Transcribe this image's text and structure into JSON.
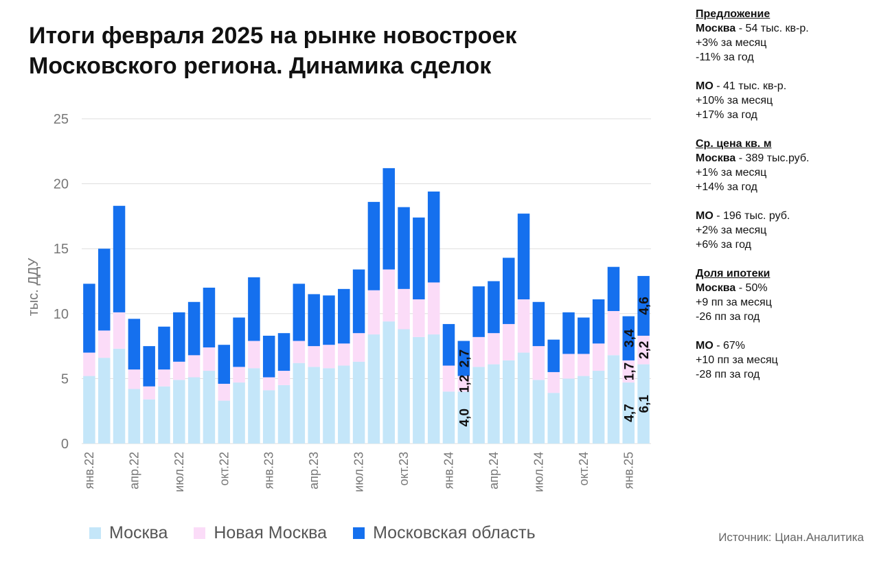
{
  "title_lines": [
    "Итоги февраля 2025 на рынке новостроек",
    "Московского региона. Динамика сделок"
  ],
  "colors": {
    "moscow": "#c4e6f9",
    "new_moscow": "#fbdcf8",
    "mo": "#1570ee",
    "grid": "#dddddd",
    "axis_text": "#777777"
  },
  "chart_data": {
    "type": "bar",
    "stacked": true,
    "ylabel": "тыс. ДДУ",
    "ylim": [
      0,
      25
    ],
    "yticks": [
      0,
      5,
      10,
      15,
      20,
      25
    ],
    "grid": true,
    "legend_position": "bottom",
    "x_tick_labels": [
      {
        "index": 0,
        "label": "янв.22"
      },
      {
        "index": 3,
        "label": "апр.22"
      },
      {
        "index": 6,
        "label": "июл.22"
      },
      {
        "index": 9,
        "label": "окт.22"
      },
      {
        "index": 12,
        "label": "янв.23"
      },
      {
        "index": 15,
        "label": "апр.23"
      },
      {
        "index": 18,
        "label": "июл.23"
      },
      {
        "index": 21,
        "label": "окт.23"
      },
      {
        "index": 24,
        "label": "янв.24"
      },
      {
        "index": 27,
        "label": "апр.24"
      },
      {
        "index": 30,
        "label": "июл.24"
      },
      {
        "index": 33,
        "label": "окт.24"
      },
      {
        "index": 36,
        "label": "янв.25"
      }
    ],
    "series": [
      {
        "name": "Москва",
        "color": "#c4e6f9",
        "values": [
          5.2,
          6.6,
          7.3,
          4.2,
          3.4,
          4.4,
          4.9,
          5.1,
          5.6,
          3.3,
          4.7,
          5.8,
          4.1,
          4.5,
          6.2,
          5.9,
          5.8,
          6.0,
          6.3,
          8.4,
          9.4,
          8.8,
          8.2,
          8.4,
          4.0,
          4.0,
          5.9,
          6.1,
          6.4,
          7.0,
          4.9,
          3.9,
          5.0,
          5.2,
          5.6,
          6.8,
          4.7,
          6.1
        ]
      },
      {
        "name": "Новая Москва",
        "color": "#fbdcf8",
        "values": [
          1.8,
          2.1,
          2.8,
          1.5,
          1.0,
          1.3,
          1.4,
          1.7,
          1.8,
          1.3,
          1.2,
          2.1,
          1.0,
          1.1,
          1.7,
          1.6,
          1.8,
          1.7,
          2.2,
          3.4,
          4.0,
          3.1,
          2.9,
          4.0,
          2.0,
          1.2,
          2.3,
          2.4,
          2.8,
          4.1,
          2.6,
          1.6,
          1.9,
          1.7,
          2.1,
          3.4,
          1.7,
          2.2
        ],
        "labels": {
          "25": "1,2",
          "36": "1,7",
          "37": "2,2"
        }
      },
      {
        "name": "Московская область",
        "color": "#1570ee",
        "values": [
          5.3,
          6.3,
          8.2,
          3.9,
          3.1,
          3.3,
          3.8,
          4.1,
          4.6,
          3.0,
          3.8,
          4.9,
          3.2,
          2.9,
          4.4,
          4.0,
          3.8,
          4.2,
          4.9,
          6.8,
          7.8,
          6.3,
          6.3,
          7.0,
          3.2,
          2.7,
          3.9,
          4.0,
          5.1,
          6.6,
          3.4,
          2.5,
          3.2,
          2.8,
          3.4,
          3.4,
          3.4,
          4.6
        ],
        "labels": {
          "25": "2,7",
          "36": "3,4",
          "37": "4,6"
        }
      }
    ],
    "moscow_labels": {
      "25": "4,0",
      "36": "4,7",
      "37": "6,1"
    }
  },
  "legend": [
    {
      "label": "Москва",
      "color": "#c4e6f9"
    },
    {
      "label": "Новая Москва",
      "color": "#fbdcf8"
    },
    {
      "label": "Московская область",
      "color": "#1570ee"
    }
  ],
  "source": "Источник: Циан.Аналитика",
  "side_panel": {
    "offer": {
      "title": "Предложение",
      "moscow_name": "Москва",
      "moscow_value": " - 54 тыс. кв-р.",
      "moscow_month": "+3% за месяц",
      "moscow_year": "-11% за год",
      "mo_name": "МО",
      "mo_value": " - 41 тыс. кв-р.",
      "mo_month": "+10% за месяц",
      "mo_year": "+17% за год"
    },
    "price": {
      "title": "Ср. цена кв. м",
      "moscow_name": "Москва",
      "moscow_value": " - 389 тыс.руб.",
      "moscow_month": "+1% за месяц",
      "moscow_year": "+14% за год",
      "mo_name": "МО",
      "mo_value": " - 196 тыс. руб.",
      "mo_month": "+2% за месяц",
      "mo_year": "+6% за год"
    },
    "mortgage": {
      "title": "Доля ипотеки",
      "moscow_name": "Москва",
      "moscow_value": " - 50%",
      "moscow_month": "+9 пп за месяц",
      "moscow_year": "-26 пп за год",
      "mo_name": "МО",
      "mo_value": " - 67%",
      "mo_month": "+10 пп за месяц",
      "mo_year": "-28 пп за год"
    }
  }
}
